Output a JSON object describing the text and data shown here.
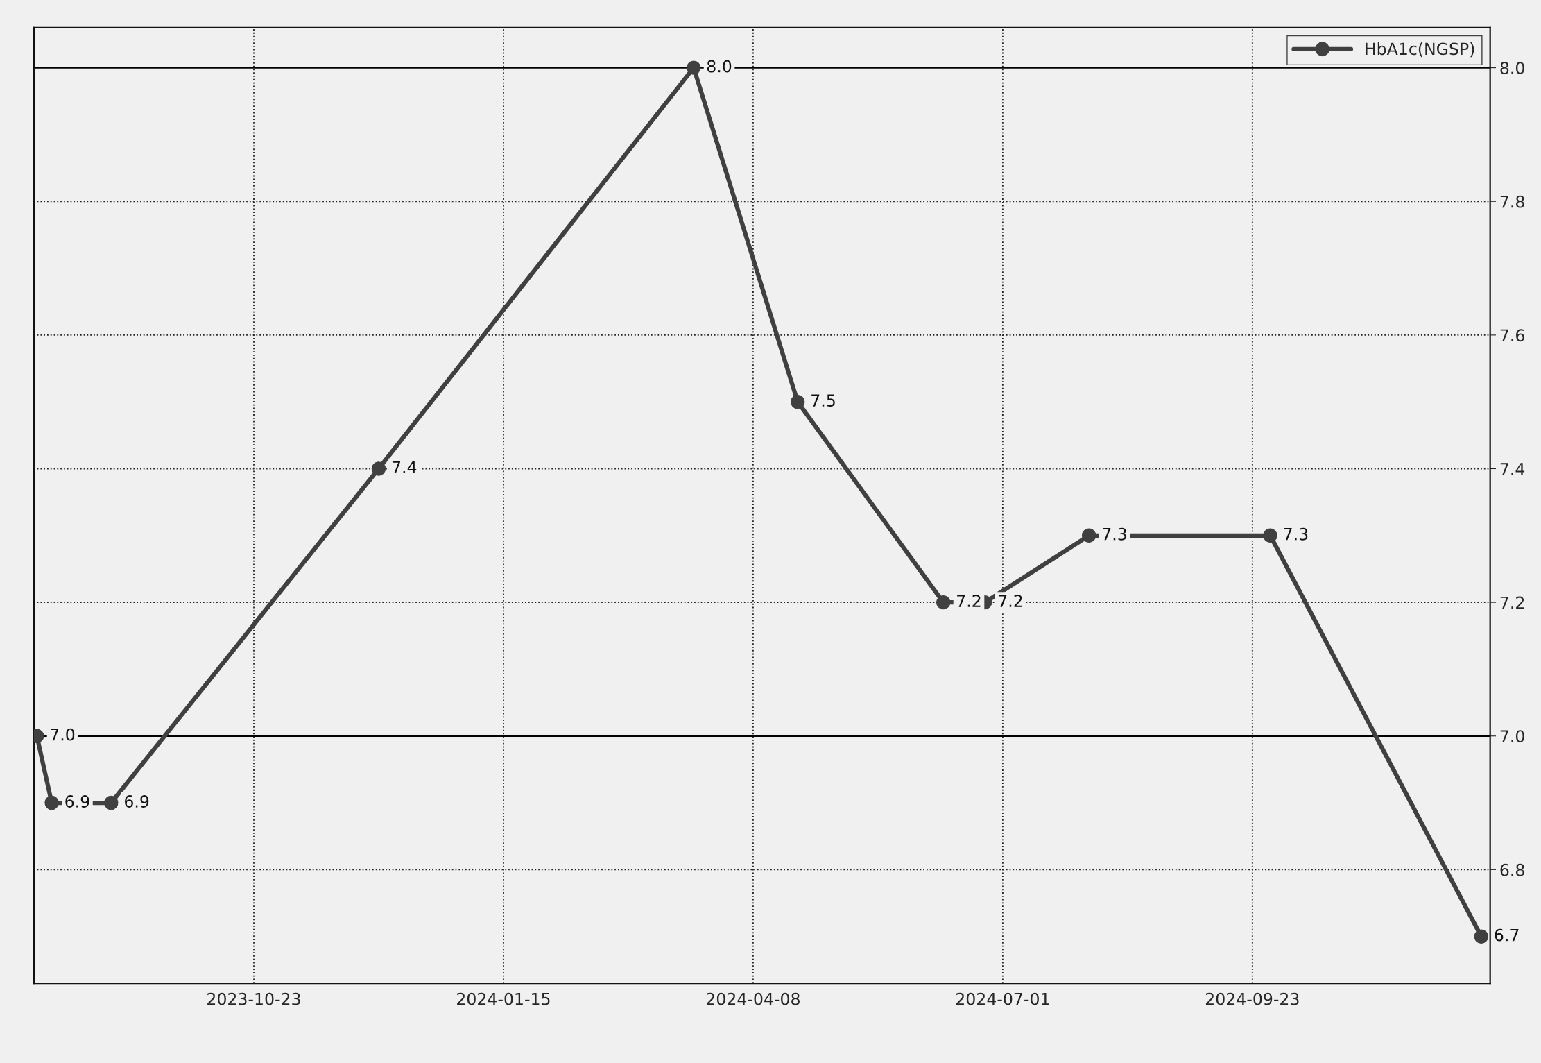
{
  "chart_data": {
    "type": "line",
    "x": [
      "2023-08-11",
      "2023-08-16",
      "2023-09-05",
      "2023-12-04",
      "2024-03-19",
      "2024-04-23",
      "2024-06-11",
      "2024-06-25",
      "2024-07-30",
      "2024-09-29",
      "2024-12-09"
    ],
    "series": [
      {
        "name": "HbA1c(NGSP)",
        "color": "#404040",
        "values": [
          7.0,
          6.9,
          6.9,
          7.4,
          8.0,
          7.5,
          7.2,
          7.2,
          7.3,
          7.3,
          6.7
        ],
        "value_labels": [
          "7.0",
          "6.9",
          "6.9",
          "7.4",
          "8.0",
          "7.5",
          "7.2",
          "7.2",
          "7.3",
          "7.3",
          "6.7"
        ]
      }
    ],
    "xlim": [
      "2023-08-10",
      "2024-12-12"
    ],
    "xticks": [
      "2023-10-23",
      "2024-01-15",
      "2024-04-08",
      "2024-07-01",
      "2024-09-23"
    ],
    "ylim": [
      6.63,
      8.06
    ],
    "yticks": [
      {
        "value": 6.8,
        "label": "6.8"
      },
      {
        "value": 7.0,
        "label": "7.0"
      },
      {
        "value": 7.2,
        "label": "7.2"
      },
      {
        "value": 7.4,
        "label": "7.4"
      },
      {
        "value": 7.6,
        "label": "7.6"
      },
      {
        "value": 7.8,
        "label": "7.8"
      },
      {
        "value": 8.0,
        "label": "8.0"
      }
    ],
    "grid": true,
    "legend": "top right",
    "marker": "circle",
    "line_style": "solid"
  }
}
